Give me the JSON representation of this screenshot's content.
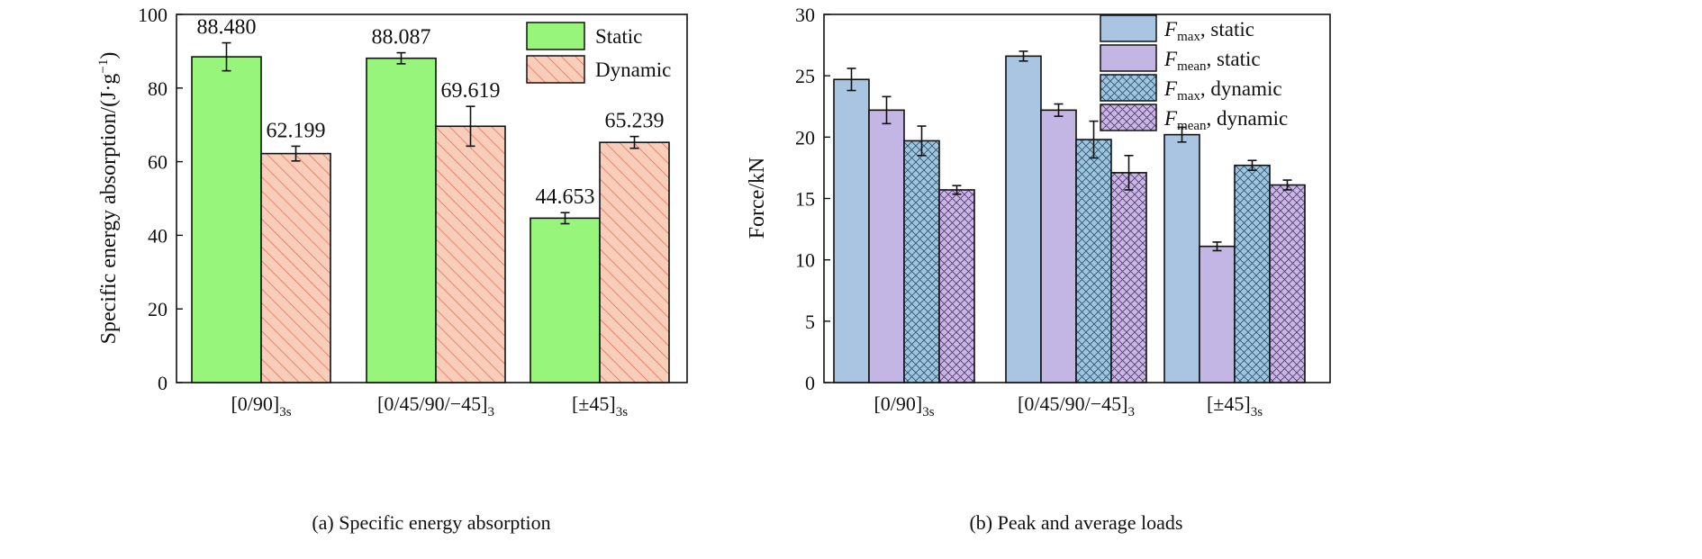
{
  "colors": {
    "static_green": "#98f57c",
    "dynamic_fill": "#f8cdb9",
    "dynamic_hatch": "#e8705a",
    "fmax_static": "#a9c5e2",
    "fmean_static": "#c3b6e4",
    "fmax_dynamic": "#9fc6e0",
    "fmean_dynamic": "#cbb6e6"
  },
  "chart_data": [
    {
      "type": "bar",
      "caption": "(a) Specific energy absorption",
      "ylabel": "Specific energy absorption/(J·g",
      "ylabel_sup": "−1",
      "ylabel_end": ")",
      "ylim": [
        0,
        100
      ],
      "yticks": [
        "0",
        "20",
        "40",
        "60",
        "80",
        "100"
      ],
      "categories": [
        {
          "main": "[0/90]",
          "sub": "3s"
        },
        {
          "main": "[0/45/90/−45]",
          "sub": "3"
        },
        {
          "main": "[±45]",
          "sub": "3s"
        }
      ],
      "series": [
        {
          "name": "Static",
          "values": [
            88.48,
            88.087,
            44.653
          ],
          "errors": [
            3.8,
            1.5,
            1.5
          ],
          "labels": [
            "88.480",
            "88.087",
            "44.653"
          ]
        },
        {
          "name": "Dynamic",
          "values": [
            62.199,
            69.619,
            65.239
          ],
          "errors": [
            2.0,
            5.4,
            1.6
          ],
          "labels": [
            "62.199",
            "69.619",
            "65.239"
          ]
        }
      ],
      "legend_position": "top-right"
    },
    {
      "type": "bar",
      "caption": "(b) Peak and average loads",
      "ylabel": "Force/kN",
      "ylim": [
        0,
        30
      ],
      "yticks": [
        "0",
        "5",
        "10",
        "15",
        "20",
        "25",
        "30"
      ],
      "categories": [
        {
          "main": "[0/90]",
          "sub": "3s"
        },
        {
          "main": "[0/45/90/−45]",
          "sub": "3"
        },
        {
          "main": "[±45]",
          "sub": "3s"
        }
      ],
      "series": [
        {
          "name": "F",
          "name_sub": "max",
          "name_tail": ", static",
          "values": [
            24.7,
            26.6,
            20.2
          ],
          "errors": [
            0.9,
            0.4,
            0.6
          ]
        },
        {
          "name": "F",
          "name_sub": "mean",
          "name_tail": ", static",
          "values": [
            22.2,
            22.2,
            11.1
          ],
          "errors": [
            1.1,
            0.5,
            0.35
          ]
        },
        {
          "name": "F",
          "name_sub": "max",
          "name_tail": ", dynamic",
          "values": [
            19.7,
            19.8,
            17.7
          ],
          "errors": [
            1.2,
            1.5,
            0.4
          ]
        },
        {
          "name": "F",
          "name_sub": "mean",
          "name_tail": ", dynamic",
          "values": [
            15.7,
            17.1,
            16.1
          ],
          "errors": [
            0.35,
            1.4,
            0.4
          ]
        }
      ],
      "legend_position": "top-right"
    }
  ]
}
